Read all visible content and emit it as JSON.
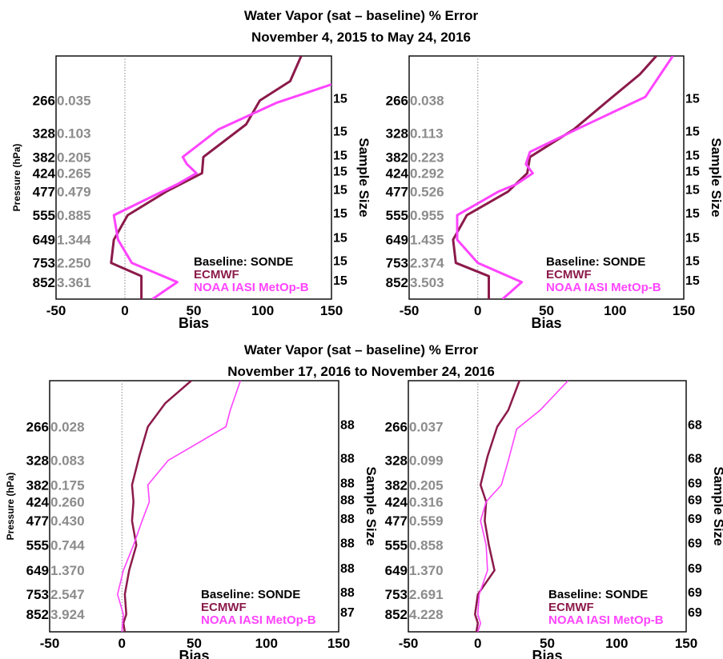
{
  "titles": [
    {
      "line1": "Water Vapor (sat – baseline) % Error",
      "line2": "November 4, 2015 to May 24, 2016"
    },
    {
      "line1": "Water Vapor (sat – baseline) % Error",
      "line2": "November 17, 2016 to November 24, 2016"
    }
  ],
  "colors": {
    "ecmwf": "#8b1a4a",
    "iasi": "#ff44ff",
    "std_text": "#8c8c8c",
    "zero_line": "#888888"
  },
  "chart_data": [
    {
      "type": "line",
      "xlabel": "Bias",
      "ylabel": "Pressure (hPa)",
      "right_label": "Sample Size",
      "xlim": [
        -50,
        150
      ],
      "xticks": [
        "-50",
        "0",
        "50",
        "100",
        "150"
      ],
      "pressure_levels": [
        "266",
        "328",
        "382",
        "424",
        "477",
        "555",
        "649",
        "753",
        "852"
      ],
      "std_values": [
        "0.035",
        "0.103",
        "0.205",
        "0.265",
        "0.479",
        "0.885",
        "1.344",
        "2.250",
        "3.361"
      ],
      "sample_sizes": [
        "15",
        "15",
        "15",
        "15",
        "15",
        "15",
        "15",
        "15",
        "15"
      ],
      "legend": {
        "baseline": "Baseline: SONDE",
        "series_names": [
          "ECMWF",
          "NOAA IASI MetOp-B"
        ]
      },
      "series": [
        {
          "name": "ECMWF",
          "color": "#8b1a4a",
          "x": [
            128,
            120,
            98,
            88,
            57,
            56,
            30,
            2,
            -8,
            -10,
            12,
            12
          ],
          "p": [
            200,
            235,
            266,
            310,
            382,
            424,
            477,
            555,
            649,
            753,
            820,
            950
          ]
        },
        {
          "name": "NOAA IASI MetOp-B",
          "color": "#ff44ff",
          "x": [
            150,
            110,
            68,
            42,
            45,
            52,
            38,
            27,
            -8,
            -5,
            5,
            38,
            20
          ],
          "p": [
            240,
            270,
            320,
            382,
            400,
            424,
            455,
            477,
            555,
            649,
            753,
            852,
            950
          ]
        }
      ]
    },
    {
      "type": "line",
      "xlabel": "Bias",
      "ylabel": "Pressure (hPa)",
      "right_label": "Sample Size",
      "xlim": [
        -50,
        150
      ],
      "xticks": [
        "-50",
        "0",
        "50",
        "100",
        "150"
      ],
      "pressure_levels": [
        "266",
        "328",
        "382",
        "424",
        "477",
        "555",
        "649",
        "753",
        "852"
      ],
      "std_values": [
        "0.038",
        "0.113",
        "0.223",
        "0.292",
        "0.526",
        "0.955",
        "1.435",
        "2.374",
        "3.503"
      ],
      "sample_sizes": [
        "15",
        "15",
        "15",
        "15",
        "15",
        "15",
        "15",
        "15",
        "15"
      ],
      "legend": {
        "baseline": "Baseline: SONDE",
        "series_names": [
          "ECMWF",
          "NOAA IASI MetOp-B"
        ]
      },
      "series": [
        {
          "name": "ECMWF",
          "color": "#8b1a4a",
          "x": [
            130,
            118,
            95,
            70,
            38,
            36,
            22,
            -8,
            -18,
            -16,
            8,
            8
          ],
          "p": [
            200,
            225,
            266,
            320,
            382,
            424,
            477,
            555,
            649,
            753,
            820,
            950
          ]
        },
        {
          "name": "NOAA IASI MetOp-B",
          "color": "#ff44ff",
          "x": [
            142,
            122,
            75,
            38,
            35,
            40,
            28,
            15,
            -15,
            -15,
            0,
            32,
            18
          ],
          "p": [
            200,
            260,
            316,
            370,
            400,
            424,
            455,
            477,
            555,
            649,
            753,
            852,
            950
          ]
        }
      ]
    },
    {
      "type": "line",
      "xlabel": "Bias",
      "ylabel": "Pressure (hPa)",
      "right_label": "Sample Size",
      "xlim": [
        -50,
        150
      ],
      "xticks": [
        "-50",
        "0",
        "50",
        "100",
        "150"
      ],
      "pressure_levels": [
        "266",
        "328",
        "382",
        "424",
        "477",
        "555",
        "649",
        "753",
        "852"
      ],
      "std_values": [
        "0.028",
        "0.083",
        "0.175",
        "0.260",
        "0.430",
        "0.744",
        "1.370",
        "2.547",
        "3.924"
      ],
      "sample_sizes": [
        "88",
        "88",
        "88",
        "88",
        "88",
        "88",
        "88",
        "88",
        "87"
      ],
      "legend": {
        "baseline": "Baseline: SONDE",
        "series_names": [
          "ECMWF",
          "NOAA IASI MetOp-B"
        ]
      },
      "series": [
        {
          "name": "ECMWF",
          "color": "#8b1a4a",
          "x": [
            48,
            30,
            18,
            12,
            7,
            8,
            7,
            10,
            5,
            2,
            3,
            1,
            2
          ],
          "p": [
            200,
            230,
            266,
            320,
            382,
            424,
            477,
            555,
            649,
            753,
            852,
            900,
            950
          ]
        },
        {
          "name": "NOAA IASI MetOp-B",
          "color": "#ff44ff",
          "x": [
            82,
            75,
            72,
            32,
            18,
            19,
            14,
            8,
            1,
            -3,
            1,
            0
          ],
          "p": [
            200,
            240,
            266,
            328,
            382,
            424,
            477,
            555,
            649,
            753,
            852,
            950
          ]
        }
      ]
    },
    {
      "type": "line",
      "xlabel": "Bias",
      "ylabel": "Pressure (hPa)",
      "right_label": "Sample Size",
      "xlim": [
        -50,
        150
      ],
      "xticks": [
        "-50",
        "0",
        "50",
        "100",
        "150"
      ],
      "pressure_levels": [
        "266",
        "328",
        "382",
        "424",
        "477",
        "555",
        "649",
        "753",
        "852"
      ],
      "std_values": [
        "0.037",
        "0.099",
        "0.205",
        "0.316",
        "0.559",
        "0.858",
        "1.370",
        "2.691",
        "4.228"
      ],
      "sample_sizes": [
        "68",
        "68",
        "69",
        "69",
        "69",
        "69",
        "69",
        "69",
        "69"
      ],
      "legend": {
        "baseline": "Baseline: SONDE",
        "series_names": [
          "ECMWF",
          "NOAA IASI MetOp-B"
        ]
      },
      "series": [
        {
          "name": "ECMWF",
          "color": "#8b1a4a",
          "x": [
            30,
            22,
            14,
            7,
            2,
            6,
            5,
            8,
            12,
            0,
            -2,
            0,
            -1
          ],
          "p": [
            200,
            240,
            266,
            320,
            382,
            424,
            477,
            555,
            649,
            753,
            852,
            900,
            950
          ]
        },
        {
          "name": "NOAA IASI MetOp-B",
          "color": "#ff44ff",
          "x": [
            65,
            45,
            28,
            22,
            17,
            6,
            2,
            6,
            7,
            1,
            0,
            2,
            0
          ],
          "p": [
            200,
            240,
            270,
            328,
            382,
            424,
            477,
            555,
            649,
            753,
            852,
            900,
            950
          ]
        }
      ]
    }
  ]
}
